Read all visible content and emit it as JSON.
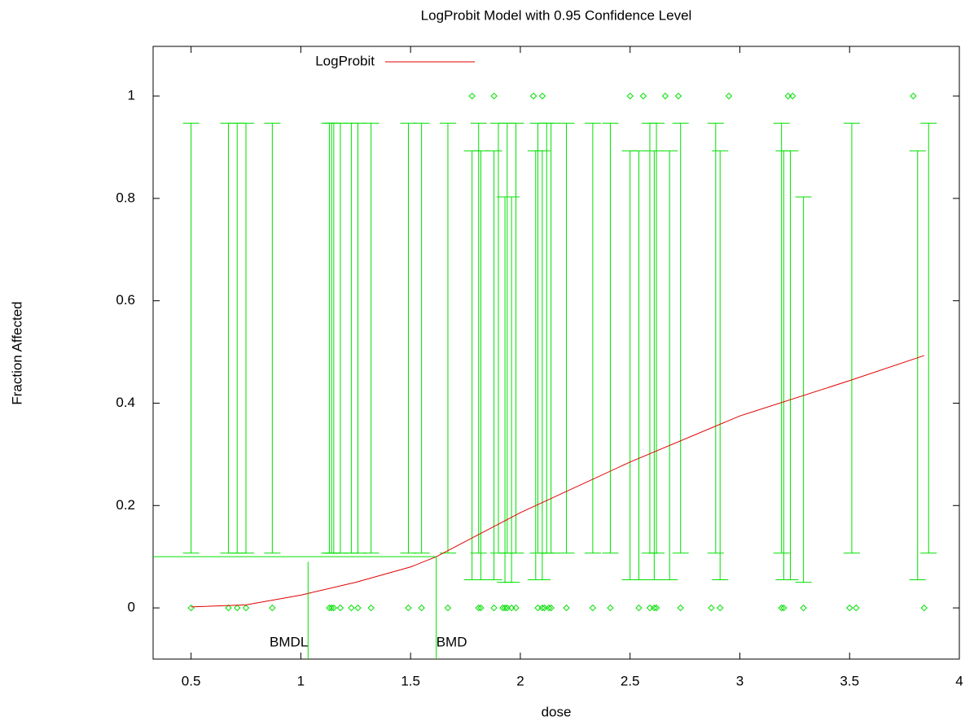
{
  "chart_data": {
    "type": "scatter",
    "title": "LogProbit Model with 0.95 Confidence Level",
    "xlabel": "dose",
    "ylabel": "Fraction Affected",
    "xlim": [
      0.327,
      4
    ],
    "ylim": [
      -0.1,
      1.097
    ],
    "xticks": [
      0.5,
      1,
      1.5,
      2,
      2.5,
      3,
      3.5,
      4
    ],
    "yticks": [
      0,
      0.2,
      0.4,
      0.6,
      0.8,
      1
    ],
    "legend": "top-left",
    "model": {
      "name": "LogProbit",
      "color": "#e00000",
      "x": [
        0.5,
        0.75,
        1.0,
        1.25,
        1.5,
        1.617,
        2.0,
        2.5,
        3.0,
        3.5,
        3.84
      ],
      "y": [
        0.002,
        0.006,
        0.025,
        0.05,
        0.08,
        0.1,
        0.186,
        0.285,
        0.375,
        0.444,
        0.493
      ]
    },
    "points": {
      "color": "#00e000",
      "x": [
        0.5,
        0.67,
        0.71,
        0.75,
        0.87,
        1.13,
        1.14,
        1.15,
        1.18,
        1.23,
        1.26,
        1.32,
        1.49,
        1.55,
        1.67,
        1.81,
        1.82,
        1.88,
        1.92,
        1.93,
        1.94,
        1.96,
        1.98,
        2.08,
        2.1,
        2.11,
        2.13,
        2.14,
        2.21,
        2.33,
        2.41,
        2.54,
        2.59,
        2.61,
        2.62,
        2.73,
        2.87,
        2.91,
        3.19,
        3.2,
        3.29,
        3.5,
        3.53,
        3.84,
        1.78,
        1.88,
        2.06,
        2.1,
        2.5,
        2.56,
        2.66,
        2.72,
        2.95,
        3.22,
        3.24,
        3.79
      ],
      "y": [
        0,
        0,
        0,
        0,
        0,
        0,
        0,
        0,
        0,
        0,
        0,
        0,
        0,
        0,
        0,
        0,
        0,
        0,
        0,
        0,
        0,
        0,
        0,
        0,
        0,
        0,
        0,
        0,
        0,
        0,
        0,
        0,
        0,
        0,
        0,
        0,
        0,
        0,
        0,
        0,
        0,
        0,
        0,
        0,
        1,
        1,
        1,
        1,
        1,
        1,
        1,
        1,
        1,
        1,
        1,
        1
      ]
    },
    "error_bars": {
      "color": "#00e000",
      "x": [
        0.5,
        0.67,
        0.71,
        0.75,
        0.87,
        1.13,
        1.14,
        1.15,
        1.18,
        1.23,
        1.26,
        1.32,
        1.49,
        1.55,
        1.67,
        1.78,
        1.81,
        1.82,
        1.88,
        1.9,
        1.93,
        1.94,
        1.96,
        1.98,
        2.07,
        2.08,
        2.1,
        2.12,
        2.14,
        2.21,
        2.33,
        2.41,
        2.5,
        2.54,
        2.59,
        2.61,
        2.62,
        2.68,
        2.73,
        2.89,
        2.91,
        3.19,
        3.2,
        3.23,
        3.29,
        3.51,
        3.81,
        3.86
      ],
      "low": [
        0.107,
        0.107,
        0.107,
        0.107,
        0.107,
        0.107,
        0.107,
        0.107,
        0.107,
        0.107,
        0.107,
        0.107,
        0.107,
        0.107,
        0.107,
        0.055,
        0.107,
        0.055,
        0.055,
        0.107,
        0.05,
        0.107,
        0.05,
        0.107,
        0.055,
        0.107,
        0.055,
        0.107,
        0.107,
        0.107,
        0.107,
        0.107,
        0.055,
        0.055,
        0.107,
        0.055,
        0.107,
        0.055,
        0.107,
        0.107,
        0.055,
        0.107,
        0.055,
        0.055,
        0.05,
        0.107,
        0.055,
        0.107
      ],
      "high": [
        0.947,
        0.947,
        0.947,
        0.947,
        0.947,
        0.947,
        0.947,
        0.947,
        0.947,
        0.947,
        0.947,
        0.947,
        0.947,
        0.947,
        0.947,
        0.893,
        0.947,
        0.893,
        0.893,
        0.947,
        0.803,
        0.947,
        0.803,
        0.947,
        0.893,
        0.947,
        0.893,
        0.947,
        0.947,
        0.947,
        0.947,
        0.947,
        0.893,
        0.893,
        0.947,
        0.893,
        0.947,
        0.893,
        0.947,
        0.947,
        0.893,
        0.947,
        0.893,
        0.893,
        0.803,
        0.947,
        0.893,
        0.947
      ]
    },
    "annotations": [
      {
        "label": "BMDL",
        "x": 1.033,
        "y": 0.09
      },
      {
        "label": "BMD",
        "x": 1.617,
        "y": 0.1
      }
    ]
  }
}
